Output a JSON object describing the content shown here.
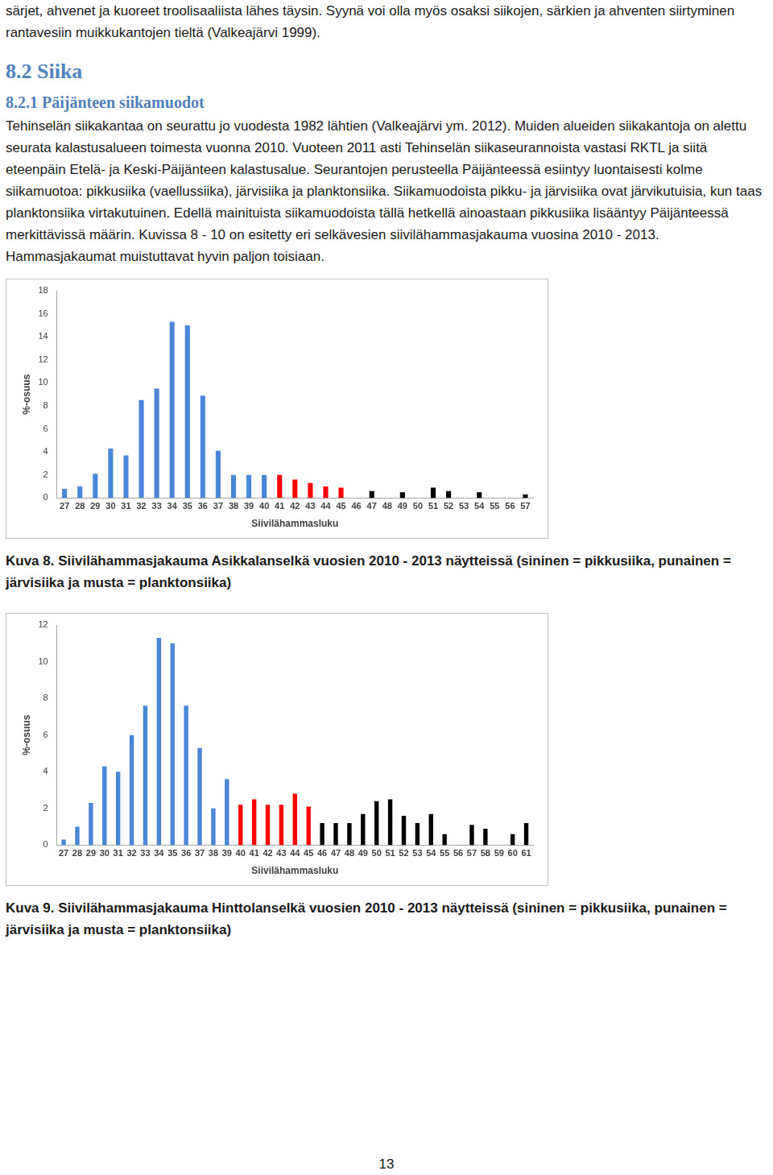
{
  "intro": "särjet, ahvenet ja kuoreet troolisaaliista lähes täysin. Syynä voi olla myös osaksi siikojen, särkien ja ahventen siirtyminen rantavesiin muikkukantojen tieltä (Valkeajärvi 1999).",
  "heading": "8.2 Siika",
  "subheading": "8.2.1 Päijänteen siikamuodot",
  "body": "Tehinselän siikakantaa on seurattu jo vuodesta 1982 lähtien (Valkeajärvi ym. 2012). Muiden alueiden siikakantoja on alettu seurata kalastusalueen toimesta vuonna 2010. Vuoteen 2011 asti Tehinselän siikaseurannoista vastasi RKTL ja siitä eteenpäin Etelä- ja Keski-Päijänteen kalastusalue. Seurantojen perusteella Päijänteessä esiintyy luontaisesti kolme siikamuotoa: pikkusiika (vaellussiika), järvisiika ja planktonsiika. Siikamuodoista pikku- ja järvisiika ovat järvikutuisia, kun taas planktonsiika virtakutuinen. Edellä mainituista siikamuodoista tällä hetkellä ainoastaan pikkusiika lisääntyy Päijänteessä merkittävissä määrin. Kuvissa 8 - 10 on esitetty eri selkävesien siivilähammasjakauma vuosina 2010 - 2013. Hammasjakaumat muistuttavat hyvin paljon toisiaan.",
  "chart_data": [
    {
      "type": "bar",
      "xlabel": "Siivilähammasluku",
      "ylabel": "%-osuus",
      "categories": [
        27,
        28,
        29,
        30,
        31,
        32,
        33,
        34,
        35,
        36,
        37,
        38,
        39,
        40,
        41,
        42,
        43,
        44,
        45,
        46,
        47,
        48,
        49,
        50,
        51,
        52,
        53,
        54,
        55,
        56,
        57
      ],
      "values": [
        0.8,
        1.0,
        2.1,
        4.3,
        3.7,
        8.5,
        9.5,
        15.3,
        15.0,
        8.9,
        4.1,
        2.0,
        2.0,
        2.0,
        2.0,
        1.6,
        1.3,
        1.0,
        0.9,
        0,
        0.6,
        0,
        0.5,
        0,
        0.9,
        0.6,
        0,
        0.5,
        0,
        0,
        0.3
      ],
      "colors": [
        "#4a86d8",
        "#4a86d8",
        "#4a86d8",
        "#4a86d8",
        "#4a86d8",
        "#4a86d8",
        "#4a86d8",
        "#4a86d8",
        "#4a86d8",
        "#4a86d8",
        "#4a86d8",
        "#4a86d8",
        "#4a86d8",
        "#4a86d8",
        "#ff0000",
        "#ff0000",
        "#ff0000",
        "#ff0000",
        "#ff0000",
        "#000000",
        "#000000",
        "#000000",
        "#000000",
        "#000000",
        "#000000",
        "#000000",
        "#000000",
        "#000000",
        "#000000",
        "#000000",
        "#000000"
      ],
      "ylim": [
        0,
        18
      ],
      "yticks": [
        0,
        2,
        4,
        6,
        8,
        10,
        12,
        14,
        16,
        18
      ],
      "grid": false
    },
    {
      "type": "bar",
      "xlabel": "Siivilähammasluku",
      "ylabel": "%-osuus",
      "categories": [
        27,
        28,
        29,
        30,
        31,
        32,
        33,
        34,
        35,
        36,
        37,
        38,
        39,
        40,
        41,
        42,
        43,
        44,
        45,
        46,
        47,
        48,
        49,
        50,
        51,
        52,
        53,
        54,
        55,
        56,
        57,
        58,
        59,
        60,
        61
      ],
      "values": [
        0.3,
        1.0,
        2.3,
        4.3,
        4.0,
        6.0,
        7.6,
        11.3,
        11.0,
        7.6,
        5.3,
        2.0,
        3.6,
        2.2,
        2.5,
        2.2,
        2.2,
        2.8,
        2.1,
        1.2,
        1.2,
        1.2,
        1.7,
        2.4,
        2.5,
        1.6,
        1.2,
        1.7,
        0.6,
        0,
        1.1,
        0.9,
        0,
        0.6,
        1.2
      ],
      "colors": [
        "#4a86d8",
        "#4a86d8",
        "#4a86d8",
        "#4a86d8",
        "#4a86d8",
        "#4a86d8",
        "#4a86d8",
        "#4a86d8",
        "#4a86d8",
        "#4a86d8",
        "#4a86d8",
        "#4a86d8",
        "#4a86d8",
        "#ff0000",
        "#ff0000",
        "#ff0000",
        "#ff0000",
        "#ff0000",
        "#ff0000",
        "#000000",
        "#000000",
        "#000000",
        "#000000",
        "#000000",
        "#000000",
        "#000000",
        "#000000",
        "#000000",
        "#000000",
        "#000000",
        "#000000",
        "#000000",
        "#000000",
        "#000000",
        "#000000"
      ],
      "ylim": [
        0,
        12
      ],
      "yticks": [
        0,
        2,
        4,
        6,
        8,
        10,
        12
      ],
      "grid": false
    }
  ],
  "captions": [
    "Kuva 8. Siivilähammasjakauma Asikkalanselkä vuosien 2010 - 2013 näytteissä (sininen = pikkusiika, punainen = järvisiika ja musta = planktonsiika)",
    "Kuva 9. Siivilähammasjakauma Hinttolanselkä vuosien 2010 - 2013 näytteissä (sininen = pikkusiika, punainen = järvisiika ja musta = planktonsiika)"
  ],
  "page_number": 13
}
